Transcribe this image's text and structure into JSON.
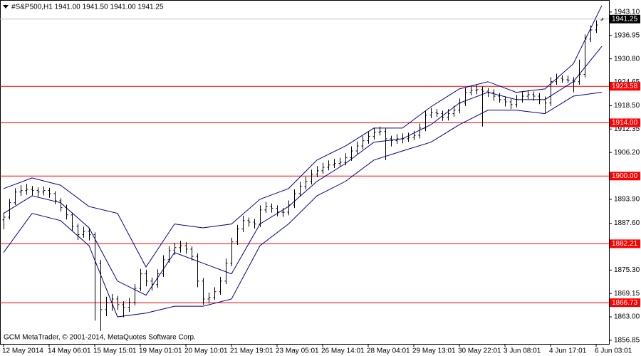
{
  "chart_data": {
    "type": "ohlc",
    "title": "#S&P500,H1  1941.00 1941.50 1941.00 1941.25",
    "footer": "GCM MetaTrader, © 2001-2014, MetaQuotes Software Corp.",
    "color": "#000000",
    "band_color": "#00008b",
    "ylim": [
      1855.9,
      1945.7
    ],
    "yticks": [
      {
        "value": 1943.1,
        "label": "1943.10"
      },
      {
        "value": 1936.95,
        "label": "1936.95"
      },
      {
        "value": 1930.8,
        "label": "1930.80"
      },
      {
        "value": 1924.65,
        "label": "1924.65"
      },
      {
        "value": 1918.5,
        "label": "1918.50"
      },
      {
        "value": 1912.35,
        "label": "1912.35"
      },
      {
        "value": 1906.2,
        "label": "1906.20"
      },
      {
        "value": 1893.9,
        "label": "1893.90"
      },
      {
        "value": 1887.6,
        "label": "1887.60"
      },
      {
        "value": 1875.3,
        "label": "1875.30"
      },
      {
        "value": 1869.15,
        "label": "1869.15"
      },
      {
        "value": 1863,
        "label": "1863.00"
      },
      {
        "value": 1856.85,
        "label": "1856.85"
      }
    ],
    "categories": [
      "12 May 2014",
      null,
      null,
      null,
      null,
      null,
      null,
      null,
      "14 May 06:01",
      null,
      null,
      null,
      null,
      null,
      null,
      null,
      "15 May 15:01",
      null,
      null,
      null,
      null,
      null,
      null,
      null,
      "19 May 01:01",
      null,
      null,
      null,
      null,
      null,
      null,
      null,
      "20 May 10:01",
      null,
      null,
      null,
      null,
      null,
      null,
      null,
      "21 May 19:01",
      null,
      null,
      null,
      null,
      null,
      null,
      null,
      "23 May 05:01",
      null,
      null,
      null,
      null,
      null,
      null,
      null,
      "26 May 14:01",
      null,
      null,
      null,
      null,
      null,
      null,
      null,
      "28 May 04:01",
      null,
      null,
      null,
      null,
      null,
      null,
      null,
      "29 May 13:01",
      null,
      null,
      null,
      null,
      null,
      null,
      null,
      "30 May 22:01",
      null,
      null,
      null,
      null,
      null,
      null,
      null,
      "3 Jun 08:01",
      null,
      null,
      null,
      null,
      null,
      null,
      null,
      "4 Jun 17:01",
      null,
      null,
      null,
      null,
      null,
      null,
      null,
      "6 Jun 03:01",
      null
    ],
    "ohlc": [
      [
        1888.5,
        1890.4,
        1886.0,
        1889.2
      ],
      [
        1889.2,
        1894.0,
        1888.6,
        1893.0
      ],
      [
        1893.0,
        1896.8,
        1892.4,
        1895.8
      ],
      [
        1895.8,
        1897.6,
        1894.8,
        1896.2
      ],
      [
        1896.2,
        1898.0,
        1895.1,
        1896.5
      ],
      [
        1896.5,
        1897.4,
        1894.9,
        1896.2
      ],
      [
        1896.2,
        1897.0,
        1894.6,
        1895.8
      ],
      [
        1895.8,
        1897.3,
        1894.9,
        1896.2
      ],
      [
        1896.2,
        1896.9,
        1894.3,
        1895.4
      ],
      [
        1895.4,
        1896.0,
        1892.6,
        1893.5
      ],
      [
        1893.5,
        1894.2,
        1890.7,
        1891.7
      ],
      [
        1891.7,
        1892.5,
        1888.6,
        1889.8
      ],
      [
        1889.8,
        1890.4,
        1885.6,
        1886.8
      ],
      [
        1886.8,
        1887.5,
        1883.2,
        1884.6
      ],
      [
        1884.6,
        1886.7,
        1883.8,
        1885.5
      ],
      [
        1885.5,
        1886.3,
        1883.1,
        1884.6
      ],
      [
        1884.6,
        1885.2,
        1862.0,
        1877.1
      ],
      [
        1877.1,
        1878.0,
        1859.3,
        1864.9
      ],
      [
        1864.9,
        1868.3,
        1863.2,
        1866.8
      ],
      [
        1866.8,
        1869.0,
        1864.6,
        1867.7
      ],
      [
        1867.7,
        1868.5,
        1864.8,
        1866.2
      ],
      [
        1866.2,
        1867.1,
        1862.9,
        1865.5
      ],
      [
        1865.5,
        1868.0,
        1864.3,
        1866.8
      ],
      [
        1866.8,
        1871.6,
        1866.0,
        1870.5
      ],
      [
        1870.5,
        1875.6,
        1869.8,
        1874.3
      ],
      [
        1874.3,
        1875.4,
        1871.0,
        1872.4
      ],
      [
        1872.4,
        1873.3,
        1869.9,
        1871.5
      ],
      [
        1871.5,
        1875.5,
        1870.7,
        1874.3
      ],
      [
        1874.3,
        1879.2,
        1873.5,
        1878.0
      ],
      [
        1878.0,
        1881.6,
        1877.2,
        1880.4
      ],
      [
        1880.4,
        1882.5,
        1879.3,
        1881.2
      ],
      [
        1881.2,
        1883.0,
        1879.9,
        1881.7
      ],
      [
        1881.7,
        1882.6,
        1879.6,
        1880.8
      ],
      [
        1880.8,
        1881.5,
        1877.8,
        1878.9
      ],
      [
        1878.9,
        1879.7,
        1870.8,
        1872.4
      ],
      [
        1872.4,
        1873.2,
        1866.2,
        1867.7
      ],
      [
        1867.7,
        1869.4,
        1866.5,
        1868.1
      ],
      [
        1868.1,
        1870.8,
        1867.4,
        1869.6
      ],
      [
        1869.6,
        1873.5,
        1868.8,
        1872.4
      ],
      [
        1872.4,
        1878.3,
        1871.6,
        1877.1
      ],
      [
        1877.1,
        1883.8,
        1876.3,
        1882.7
      ],
      [
        1882.7,
        1887.2,
        1881.9,
        1886.1
      ],
      [
        1886.1,
        1889.6,
        1885.3,
        1888.3
      ],
      [
        1888.3,
        1889.1,
        1886.7,
        1887.9
      ],
      [
        1887.9,
        1888.7,
        1886.2,
        1887.4
      ],
      [
        1887.4,
        1892.3,
        1886.6,
        1891.1
      ],
      [
        1891.1,
        1893.2,
        1890.3,
        1892.0
      ],
      [
        1892.0,
        1892.8,
        1890.4,
        1891.5
      ],
      [
        1891.5,
        1892.3,
        1889.4,
        1890.5
      ],
      [
        1890.5,
        1891.6,
        1889.3,
        1890.5
      ],
      [
        1890.5,
        1893.6,
        1889.7,
        1892.4
      ],
      [
        1892.4,
        1896.5,
        1891.6,
        1895.4
      ],
      [
        1895.4,
        1898.5,
        1894.6,
        1897.3
      ],
      [
        1897.3,
        1899.8,
        1896.5,
        1898.6
      ],
      [
        1898.6,
        1901.7,
        1897.8,
        1900.5
      ],
      [
        1900.5,
        1902.6,
        1899.7,
        1901.4
      ],
      [
        1901.4,
        1903.5,
        1900.6,
        1902.3
      ],
      [
        1902.3,
        1904.1,
        1901.5,
        1902.9
      ],
      [
        1902.9,
        1904.5,
        1902.1,
        1903.3
      ],
      [
        1903.3,
        1904.8,
        1902.5,
        1903.6
      ],
      [
        1903.6,
        1906.0,
        1902.8,
        1904.8
      ],
      [
        1904.8,
        1907.8,
        1904.0,
        1906.6
      ],
      [
        1906.6,
        1909.1,
        1905.8,
        1907.9
      ],
      [
        1907.9,
        1910.5,
        1907.1,
        1909.3
      ],
      [
        1909.3,
        1911.6,
        1908.5,
        1910.4
      ],
      [
        1910.4,
        1912.7,
        1909.6,
        1911.5
      ],
      [
        1911.5,
        1913.0,
        1910.7,
        1911.7
      ],
      [
        1911.7,
        1912.5,
        1904.2,
        1909.8
      ],
      [
        1909.8,
        1910.6,
        1907.8,
        1909.3
      ],
      [
        1909.3,
        1911.0,
        1908.5,
        1909.8
      ],
      [
        1909.8,
        1911.2,
        1908.6,
        1909.8
      ],
      [
        1909.8,
        1911.4,
        1909.0,
        1910.2
      ],
      [
        1910.2,
        1911.9,
        1909.4,
        1910.7
      ],
      [
        1910.7,
        1913.8,
        1909.9,
        1912.6
      ],
      [
        1912.6,
        1917.2,
        1911.8,
        1916.0
      ],
      [
        1916.0,
        1917.9,
        1915.2,
        1916.7
      ],
      [
        1916.7,
        1917.6,
        1915.5,
        1916.4
      ],
      [
        1916.4,
        1917.2,
        1914.5,
        1915.4
      ],
      [
        1915.4,
        1917.6,
        1914.6,
        1916.4
      ],
      [
        1916.4,
        1918.5,
        1915.6,
        1917.3
      ],
      [
        1917.3,
        1920.4,
        1916.5,
        1919.2
      ],
      [
        1919.2,
        1923.2,
        1918.4,
        1922.0
      ],
      [
        1922.0,
        1923.7,
        1921.2,
        1922.5
      ],
      [
        1922.5,
        1923.9,
        1921.5,
        1922.7
      ],
      [
        1922.7,
        1923.5,
        1913.0,
        1922.3
      ],
      [
        1922.3,
        1923.1,
        1920.8,
        1922.0
      ],
      [
        1922.0,
        1922.8,
        1919.8,
        1921.0
      ],
      [
        1921.0,
        1921.8,
        1919.3,
        1920.1
      ],
      [
        1920.1,
        1920.9,
        1918.3,
        1919.5
      ],
      [
        1919.5,
        1920.3,
        1917.6,
        1918.8
      ],
      [
        1918.8,
        1921.3,
        1918.0,
        1920.1
      ],
      [
        1920.1,
        1922.2,
        1919.3,
        1921.0
      ],
      [
        1921.0,
        1922.6,
        1920.2,
        1921.4
      ],
      [
        1921.4,
        1922.2,
        1919.8,
        1921.0
      ],
      [
        1921.0,
        1921.8,
        1918.9,
        1920.1
      ],
      [
        1920.1,
        1920.9,
        1916.4,
        1919.2
      ],
      [
        1919.2,
        1926.0,
        1918.4,
        1924.8
      ],
      [
        1924.8,
        1926.9,
        1924.0,
        1925.7
      ],
      [
        1925.7,
        1926.5,
        1924.5,
        1925.3
      ],
      [
        1925.3,
        1926.4,
        1924.4,
        1925.2
      ],
      [
        1925.2,
        1926.0,
        1922.0,
        1924.8
      ],
      [
        1924.8,
        1930.6,
        1924.0,
        1926.7
      ],
      [
        1926.7,
        1937.2,
        1925.9,
        1936.0
      ],
      [
        1936.0,
        1939.6,
        1935.2,
        1938.4
      ],
      [
        1938.4,
        1940.9,
        1937.6,
        1939.7
      ],
      [
        1941.0,
        1941.5,
        1941.0,
        1941.25
      ]
    ],
    "bands": {
      "x": [
        0,
        5,
        10,
        15,
        20,
        25,
        30,
        35,
        40,
        45,
        50,
        55,
        60,
        65,
        70,
        75,
        80,
        85,
        90,
        95,
        100,
        105
      ],
      "upper": [
        1896.7,
        1899.5,
        1897.6,
        1892.0,
        1890.2,
        1876.1,
        1887.4,
        1886.4,
        1887.4,
        1893.9,
        1896.7,
        1904.2,
        1907.9,
        1912.6,
        1912.6,
        1918.2,
        1922.9,
        1924.8,
        1922.0,
        1922.9,
        1929.5,
        1944.8
      ],
      "middle": [
        1890.2,
        1894.8,
        1893.0,
        1886.4,
        1872.4,
        1868.7,
        1879.9,
        1877.1,
        1874.3,
        1887.4,
        1892.0,
        1898.6,
        1903.3,
        1908.9,
        1909.8,
        1913.5,
        1919.2,
        1922.0,
        1920.1,
        1920.1,
        1924.8,
        1934.1
      ],
      "lower": [
        1879.9,
        1890.2,
        1888.3,
        1881.7,
        1863.0,
        1864.0,
        1865.8,
        1865.8,
        1867.7,
        1881.7,
        1887.4,
        1894.8,
        1898.6,
        1904.2,
        1906.6,
        1908.9,
        1913.5,
        1917.3,
        1917.3,
        1916.4,
        1921.0,
        1922.0
      ]
    },
    "levels": {
      "values": [
        1923.58,
        1914,
        1900,
        1882.21,
        1866.73
      ],
      "value_labels": [
        "1923.58",
        "1914.00",
        "1900.00",
        "1882.21",
        "1866.73"
      ],
      "color": "#ff0000"
    },
    "current": {
      "value": 1941.25,
      "value_label": "1941.25",
      "color": "#c0c0c0"
    }
  }
}
